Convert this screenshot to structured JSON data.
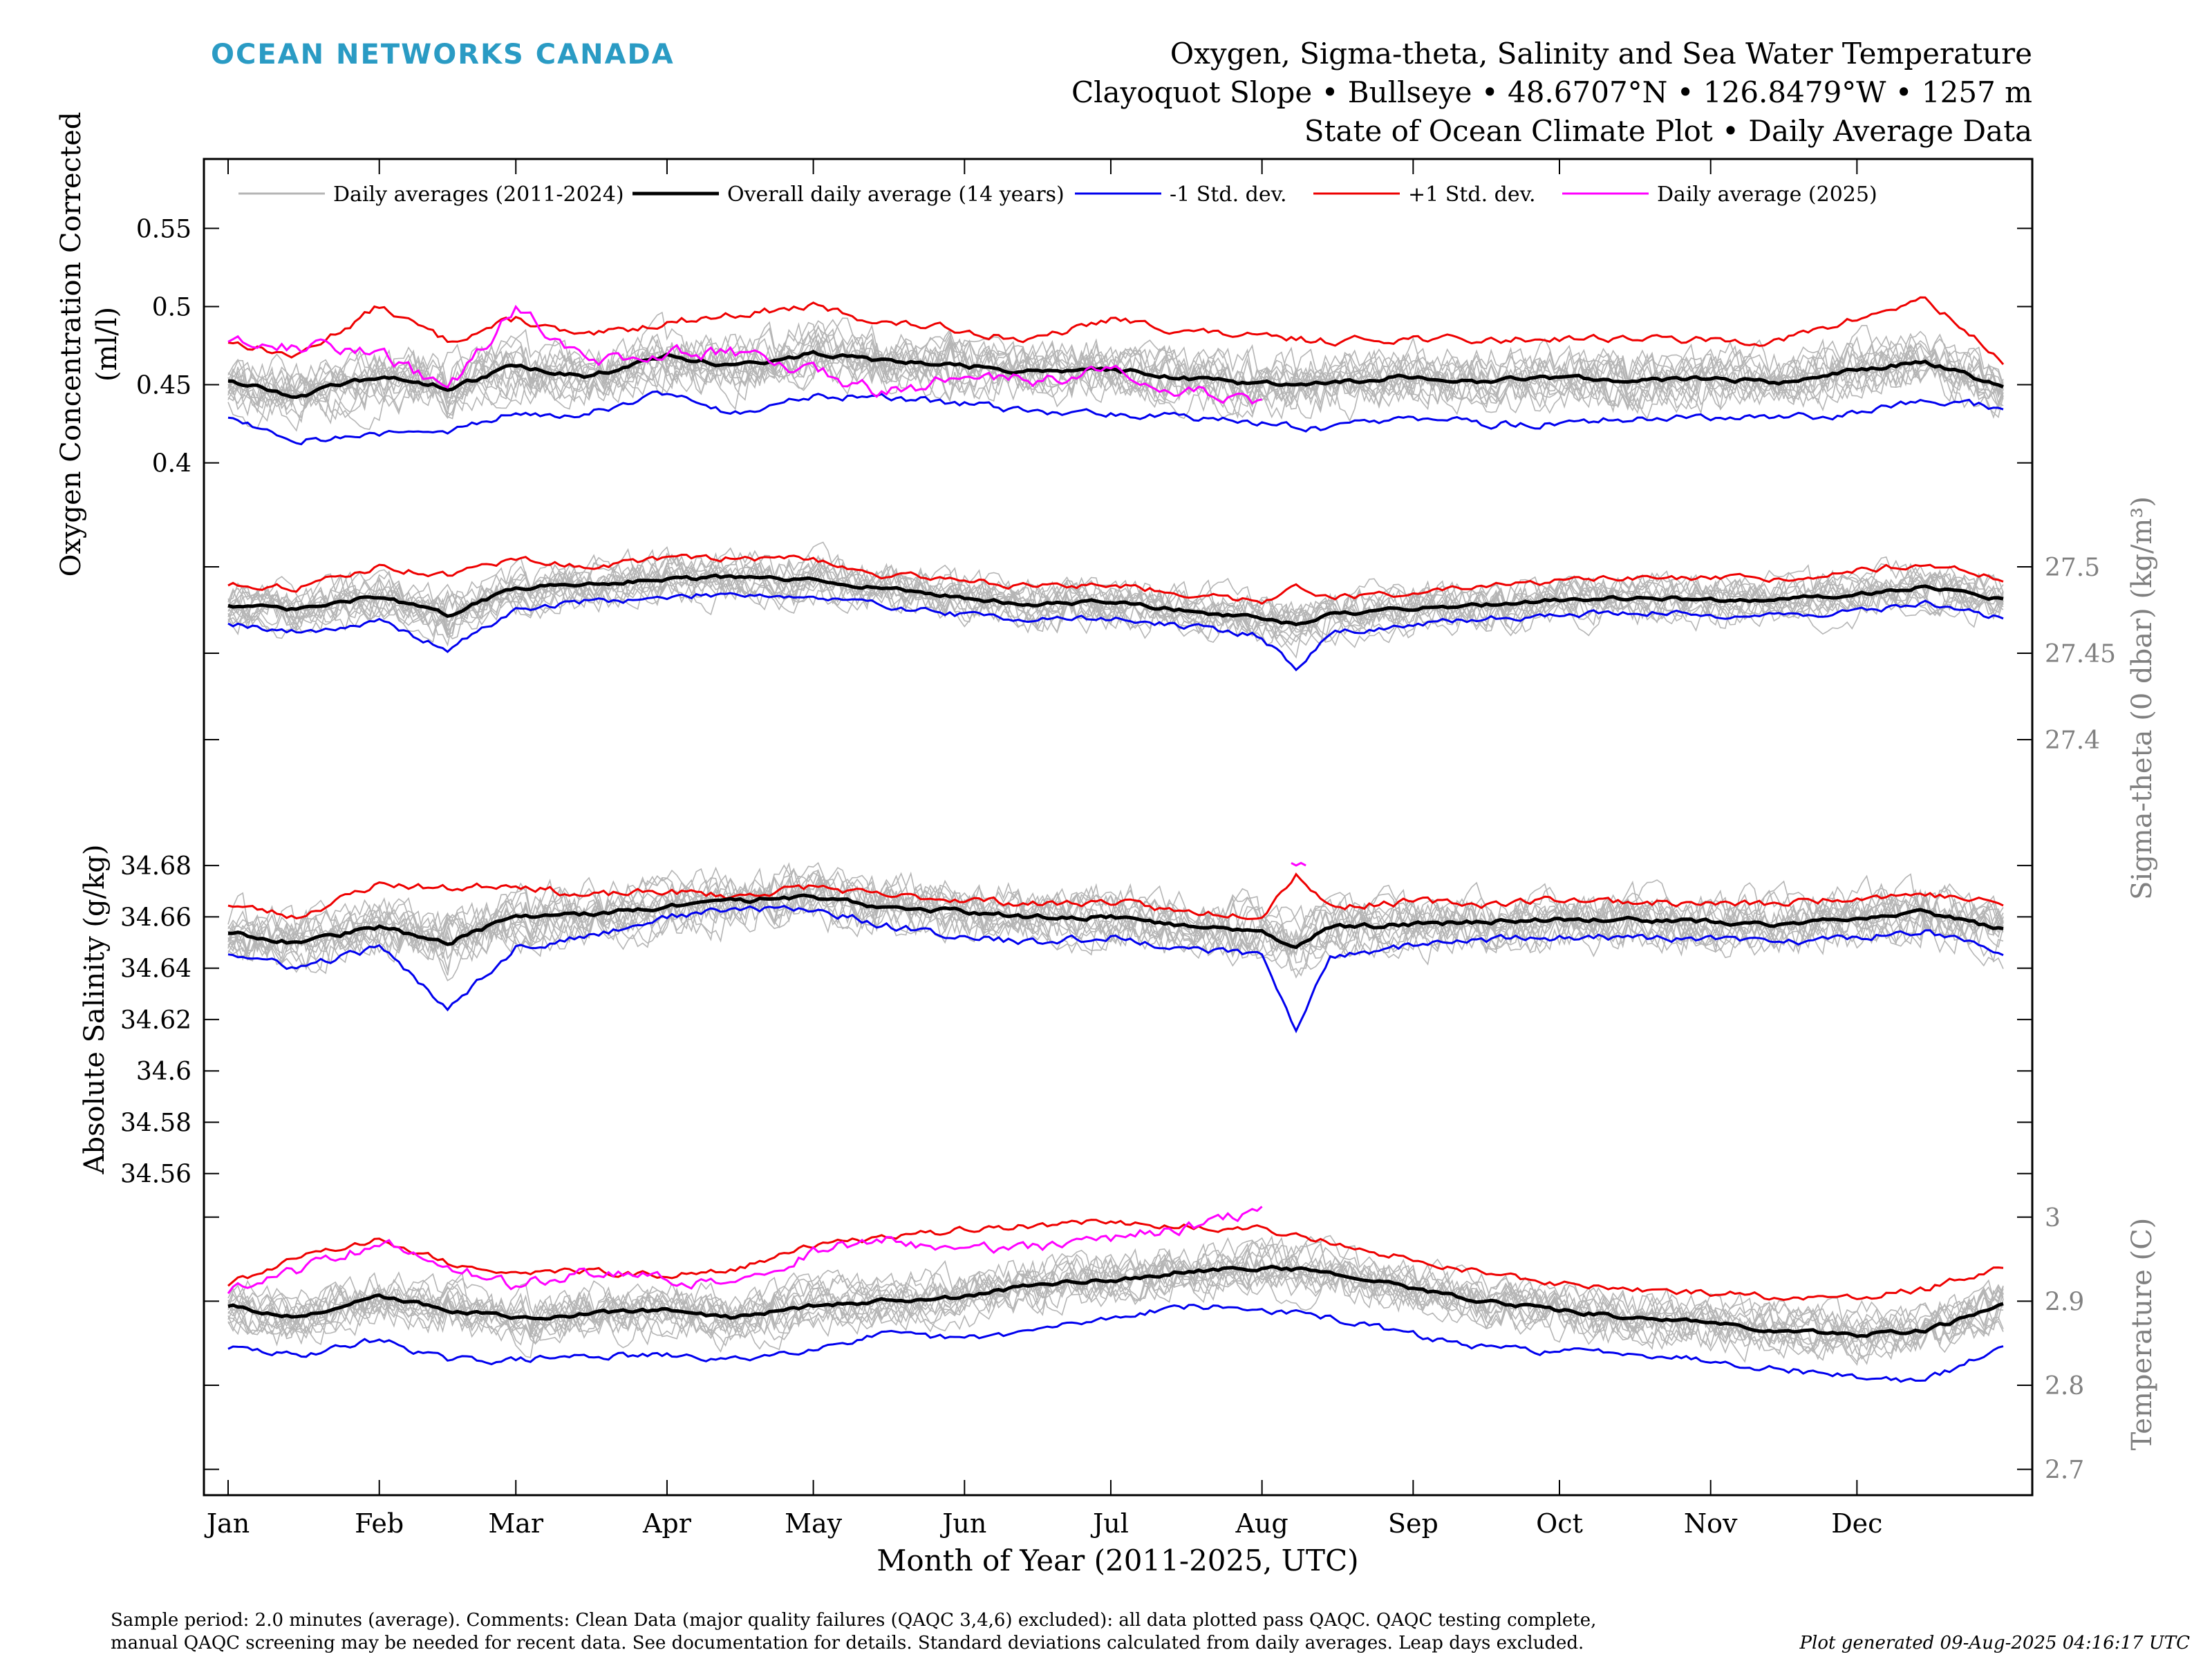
{
  "logo": {
    "text": "OCEAN NETWORKS CANADA",
    "color": "#2a9bc4"
  },
  "header": {
    "line1": "Oxygen, Sigma-theta, Salinity and Sea Water Temperature",
    "line2": "Clayoquot Slope • Bullseye • 48.6707°N • 126.8479°W • 1257 m",
    "line3": "State of Ocean Climate Plot • Daily Average Data"
  },
  "footer": {
    "line1": "Sample period: 2.0 minutes (average). Comments: Clean Data (major quality failures (QAQC 3,4,6) excluded): all data plotted pass QAQC. QAQC testing complete,",
    "line2": "manual QAQC screening may be needed for recent data. See documentation for details. Standard deviations calculated from daily averages. Leap days excluded.",
    "generated": "Plot generated 09-Aug-2025 04:16:17 UTC"
  },
  "colors": {
    "history": "#b5b5b5",
    "overall": "#000000",
    "minus_std": "#0000ee",
    "plus_std": "#ee0000",
    "current_year": "#ff00ff",
    "right_axis": "#808080"
  },
  "chart_data": {
    "type": "line",
    "x_unit": "day of year",
    "xlabel": "Month of Year (2011-2025, UTC)",
    "xlim": [
      1,
      365
    ],
    "x_ticks": [
      1,
      32,
      60,
      91,
      121,
      152,
      182,
      213,
      244,
      274,
      305,
      335
    ],
    "x_tick_labels": [
      "Jan",
      "Feb",
      "Mar",
      "Apr",
      "May",
      "Jun",
      "Jul",
      "Aug",
      "Sep",
      "Oct",
      "Nov",
      "Dec"
    ],
    "legend": {
      "placement": "top",
      "entries": [
        "Daily averages (2011-2024)",
        "Overall daily average (14 years)",
        "-1 Std. dev.",
        "+1 Std. dev.",
        "Daily average (2025)"
      ]
    },
    "grid": false,
    "panels": [
      {
        "variable": "oxygen",
        "ylabel": "Oxygen Concentration Corrected (ml/l)",
        "ylabel_lines": [
          "Oxygen Concentration Corrected",
          "(ml/l)"
        ],
        "axis_side": "left",
        "ylim": [
          0.36,
          0.59
        ],
        "ticks": [
          0.4,
          0.45,
          0.5,
          0.55
        ],
        "tick_labels": [
          "0.4",
          "0.45",
          "0.5",
          "0.55"
        ],
        "series_approx": {
          "x": [
            1,
            15,
            32,
            46,
            60,
            74,
            91,
            105,
            121,
            135,
            152,
            166,
            182,
            196,
            213,
            227,
            244,
            258,
            274,
            288,
            305,
            319,
            335,
            349,
            365
          ],
          "overall_mean": [
            0.453,
            0.443,
            0.455,
            0.448,
            0.462,
            0.455,
            0.468,
            0.462,
            0.47,
            0.465,
            0.462,
            0.458,
            0.46,
            0.455,
            0.45,
            0.452,
            0.455,
            0.452,
            0.455,
            0.452,
            0.454,
            0.452,
            0.46,
            0.465,
            0.448
          ],
          "plus_1_std": [
            0.478,
            0.468,
            0.5,
            0.478,
            0.492,
            0.48,
            0.49,
            0.495,
            0.5,
            0.49,
            0.485,
            0.478,
            0.492,
            0.485,
            0.48,
            0.478,
            0.48,
            0.478,
            0.48,
            0.48,
            0.478,
            0.478,
            0.492,
            0.505,
            0.465
          ],
          "minus_1_std": [
            0.43,
            0.415,
            0.418,
            0.42,
            0.432,
            0.432,
            0.445,
            0.432,
            0.442,
            0.442,
            0.438,
            0.432,
            0.432,
            0.43,
            0.425,
            0.422,
            0.428,
            0.425,
            0.425,
            0.428,
            0.428,
            0.428,
            0.432,
            0.442,
            0.435
          ],
          "current_2025": {
            "x": [
              1,
              15,
              32,
              46,
              60,
              74,
              91,
              105,
              121,
              135,
              152,
              166,
              182,
              196,
              213
            ],
            "y": [
              0.478,
              0.475,
              0.47,
              0.445,
              0.5,
              0.465,
              0.47,
              0.47,
              0.458,
              0.445,
              0.455,
              0.452,
              0.462,
              0.448,
              0.44
            ]
          }
        }
      },
      {
        "variable": "sigma_theta",
        "ylabel": "Sigma-theta (0 dbar) (kg/m³)",
        "axis_side": "right",
        "ylim": [
          27.36,
          27.53
        ],
        "ticks": [
          27.4,
          27.45,
          27.5
        ],
        "tick_labels": [
          "27.4",
          "27.45",
          "27.5"
        ],
        "series_approx": {
          "x": [
            1,
            15,
            32,
            46,
            60,
            74,
            91,
            105,
            121,
            135,
            152,
            166,
            182,
            196,
            213,
            220,
            227,
            244,
            258,
            274,
            288,
            305,
            319,
            335,
            349,
            365
          ],
          "overall_mean": [
            27.478,
            27.475,
            27.483,
            27.472,
            27.488,
            27.49,
            27.493,
            27.494,
            27.492,
            27.488,
            27.482,
            27.478,
            27.48,
            27.475,
            27.47,
            27.466,
            27.472,
            27.476,
            27.478,
            27.481,
            27.482,
            27.481,
            27.481,
            27.484,
            27.489,
            27.481
          ],
          "plus_1_std": [
            27.49,
            27.488,
            27.5,
            27.495,
            27.505,
            27.5,
            27.505,
            27.505,
            27.505,
            27.495,
            27.493,
            27.488,
            27.49,
            27.485,
            27.48,
            27.49,
            27.482,
            27.485,
            27.488,
            27.492,
            27.493,
            27.493,
            27.493,
            27.498,
            27.502,
            27.493
          ],
          "minus_1_std": [
            27.468,
            27.462,
            27.468,
            27.452,
            27.475,
            27.48,
            27.482,
            27.485,
            27.482,
            27.478,
            27.472,
            27.47,
            27.47,
            27.466,
            27.46,
            27.44,
            27.462,
            27.466,
            27.47,
            27.472,
            27.474,
            27.472,
            27.472,
            27.474,
            27.479,
            27.47
          ]
        }
      },
      {
        "variable": "salinity",
        "ylabel": "Absolute Salinity (g/kg)",
        "axis_side": "left",
        "ylim": [
          34.554,
          34.69
        ],
        "ticks": [
          34.56,
          34.58,
          34.6,
          34.62,
          34.64,
          34.66,
          34.68
        ],
        "tick_labels": [
          "34.56",
          "34.58",
          "34.6",
          "34.62",
          "34.64",
          "34.66",
          "34.68"
        ],
        "series_approx": {
          "x": [
            1,
            15,
            32,
            46,
            60,
            74,
            91,
            105,
            121,
            135,
            152,
            166,
            182,
            196,
            213,
            220,
            227,
            244,
            258,
            274,
            288,
            305,
            319,
            335,
            349,
            365
          ],
          "overall_mean": [
            34.654,
            34.65,
            34.656,
            34.65,
            34.66,
            34.661,
            34.664,
            34.666,
            34.668,
            34.664,
            34.662,
            34.66,
            34.66,
            34.657,
            34.655,
            34.648,
            34.656,
            34.657,
            34.658,
            34.659,
            34.659,
            34.658,
            34.657,
            34.66,
            34.662,
            34.655
          ],
          "plus_1_std": [
            34.665,
            34.66,
            34.673,
            34.671,
            34.673,
            34.668,
            34.67,
            34.668,
            34.672,
            34.668,
            34.667,
            34.665,
            34.666,
            34.662,
            34.661,
            34.677,
            34.664,
            34.666,
            34.665,
            34.667,
            34.666,
            34.665,
            34.665,
            34.668,
            34.669,
            34.665
          ],
          "minus_1_std": [
            34.646,
            34.64,
            34.648,
            34.625,
            34.648,
            34.652,
            34.66,
            34.663,
            34.663,
            34.657,
            34.652,
            34.65,
            34.652,
            34.648,
            34.645,
            34.615,
            34.645,
            34.649,
            34.651,
            34.652,
            34.652,
            34.651,
            34.65,
            34.652,
            34.655,
            34.645
          ],
          "current_2025": {
            "x": [
              219,
              220,
              221,
              222
            ],
            "y": [
              34.681,
              34.68,
              34.681,
              34.68
            ]
          }
        }
      },
      {
        "variable": "temperature",
        "ylabel": "Temperature (C)",
        "axis_side": "right",
        "ylim": [
          2.68,
          3.05
        ],
        "ticks": [
          2.7,
          2.8,
          2.9,
          3
        ],
        "tick_labels": [
          "2.7",
          "2.8",
          "2.9",
          "3"
        ],
        "series_approx": {
          "x": [
            1,
            15,
            32,
            46,
            60,
            74,
            91,
            105,
            121,
            135,
            152,
            166,
            182,
            196,
            213,
            227,
            244,
            258,
            274,
            288,
            305,
            319,
            335,
            349,
            365
          ],
          "overall_mean": [
            2.895,
            2.88,
            2.905,
            2.89,
            2.88,
            2.885,
            2.89,
            2.88,
            2.895,
            2.9,
            2.905,
            2.92,
            2.925,
            2.935,
            2.94,
            2.935,
            2.915,
            2.9,
            2.89,
            2.88,
            2.875,
            2.865,
            2.86,
            2.865,
            2.895
          ],
          "plus_1_std": [
            2.92,
            2.95,
            2.975,
            2.945,
            2.935,
            2.935,
            2.93,
            2.94,
            2.965,
            2.975,
            2.985,
            2.99,
            2.995,
            2.99,
            2.985,
            2.97,
            2.95,
            2.935,
            2.92,
            2.915,
            2.91,
            2.905,
            2.905,
            2.915,
            2.94
          ],
          "minus_1_std": [
            2.845,
            2.835,
            2.855,
            2.83,
            2.83,
            2.835,
            2.835,
            2.83,
            2.845,
            2.86,
            2.855,
            2.865,
            2.88,
            2.895,
            2.89,
            2.88,
            2.86,
            2.845,
            2.84,
            2.84,
            2.83,
            2.82,
            2.81,
            2.805,
            2.845
          ],
          "current_2025": {
            "x": [
              1,
              15,
              32,
              46,
              60,
              74,
              91,
              105,
              121,
              135,
              152,
              166,
              182,
              196,
              213
            ],
            "y": [
              2.91,
              2.935,
              2.97,
              2.94,
              2.92,
              2.935,
              2.925,
              2.92,
              2.96,
              2.975,
              2.96,
              2.965,
              2.975,
              2.985,
              3.01
            ]
          }
        }
      }
    ]
  }
}
